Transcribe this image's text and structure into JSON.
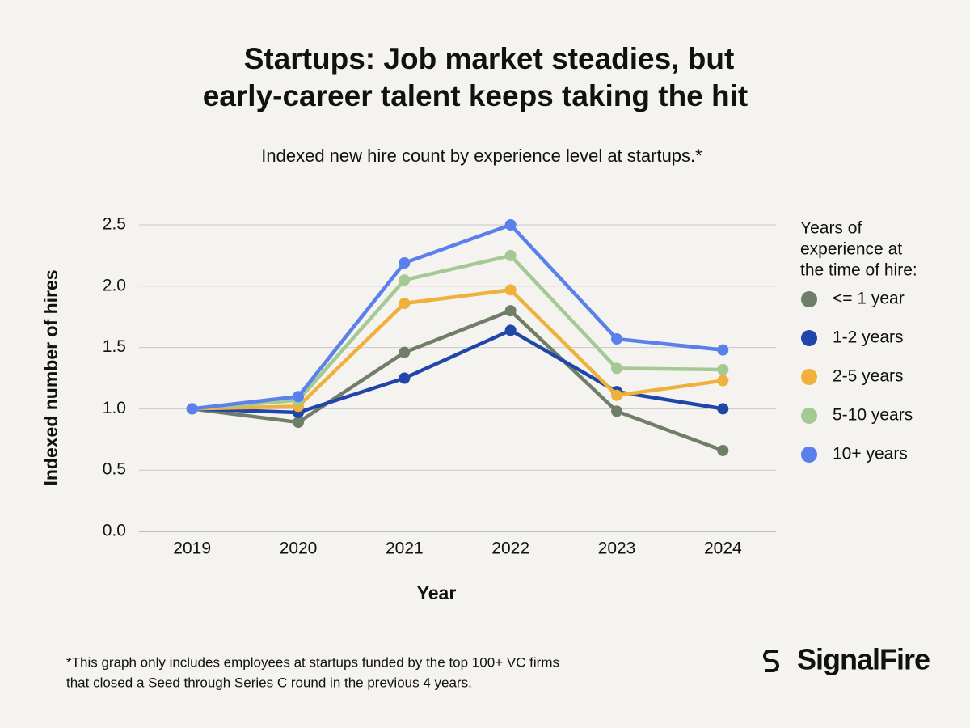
{
  "chart_data": {
    "type": "line",
    "title": [
      "Startups: Job market steadies, but",
      "early-career talent keeps taking the hit"
    ],
    "subtitle": "Indexed new hire count by experience level at startups.*",
    "x_label": "Year",
    "y_label": "Indexed number of hires",
    "categories": [
      "2019",
      "2020",
      "2021",
      "2022",
      "2023",
      "2024"
    ],
    "ylim": [
      0,
      2.5
    ],
    "yticks": [
      {
        "value": 0,
        "label": "0.0"
      },
      0.5,
      {
        "value": 1,
        "label": "1.0"
      },
      1.5,
      {
        "value": 2,
        "label": "2.0"
      },
      2.5
    ],
    "grid": true,
    "legend_title": [
      "Years of",
      "experience at",
      "the time of hire:"
    ],
    "legend_position": "right",
    "series": [
      {
        "name": "<= 1 year",
        "color": "#6f7d69",
        "values": [
          1.0,
          0.89,
          1.46,
          1.8,
          0.98,
          0.66
        ]
      },
      {
        "name": "1-2 years",
        "color": "#1f46a8",
        "values": [
          1.0,
          0.97,
          1.25,
          1.64,
          1.14,
          1.0
        ]
      },
      {
        "name": "2-5 years",
        "color": "#efb13c",
        "values": [
          1.0,
          1.02,
          1.86,
          1.97,
          1.11,
          1.23
        ]
      },
      {
        "name": "5-10 years",
        "color": "#a5c995",
        "values": [
          1.0,
          1.07,
          2.05,
          2.25,
          1.33,
          1.32
        ]
      },
      {
        "name": "10+ years",
        "color": "#5a80ec",
        "values": [
          1.0,
          1.1,
          2.19,
          2.5,
          1.57,
          1.48
        ]
      }
    ],
    "footnote": [
      "*This graph only includes employees at startups funded by the top 100+ VC firms",
      "that closed a Seed through Series C round in the previous 4 years."
    ],
    "logo": "SignalFire"
  }
}
